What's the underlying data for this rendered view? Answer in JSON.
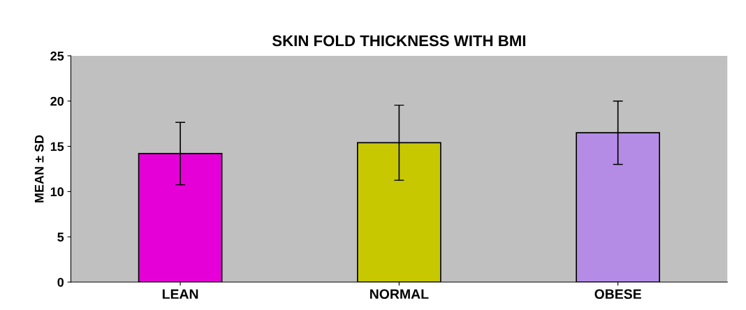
{
  "chart_data": {
    "type": "bar",
    "title": "SKIN FOLD THICKNESS WITH BMI",
    "ylabel": "MEAN ± SD",
    "categories": [
      "LEAN",
      "NORMAL",
      "OBESE"
    ],
    "values": [
      14.2,
      15.4,
      16.5
    ],
    "errors": [
      3.45,
      4.15,
      3.5
    ],
    "colors": [
      "#e600d8",
      "#c8c800",
      "#b48ce6"
    ],
    "ylim": [
      0,
      25
    ],
    "yticks": [
      0,
      5,
      10,
      15,
      20,
      25
    ],
    "grid": false
  }
}
